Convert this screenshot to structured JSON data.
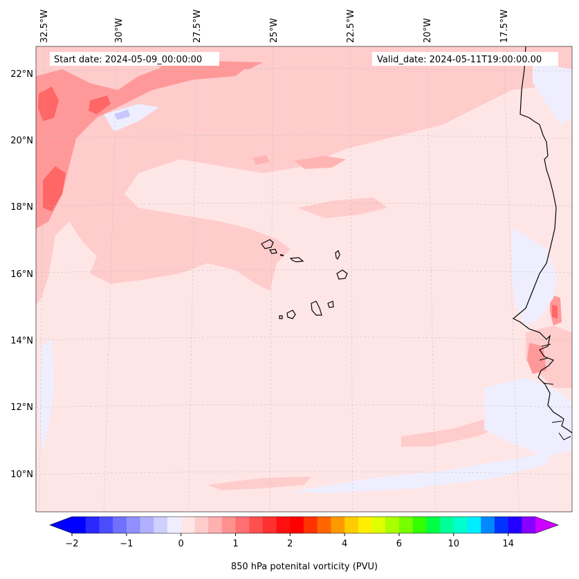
{
  "map": {
    "start_date": "Start date: 2024-05-09_00:00:00",
    "valid_date": "Valid_date: 2024-05-11T19:00:00.00",
    "lon_labels": [
      "32.5°W",
      "30°W",
      "27.5°W",
      "25°W",
      "22.5°W",
      "20°W",
      "17.5°W"
    ],
    "lat_labels": [
      "22°N",
      "20°N",
      "18°N",
      "16°N",
      "14°N",
      "12°N",
      "10°N"
    ],
    "colors": {
      "land_outline": "#000000",
      "ocean_base": "#ffe6e6",
      "light_pink": "#ffcccc",
      "medium_pink": "#ff9999",
      "strong_red": "#ff6666",
      "light_blue": "#eeeeff"
    }
  },
  "colorbar": {
    "label": "850 hPa potenital vorticity (PVU)",
    "ticks": [
      {
        "value": "−2",
        "level": -2
      },
      {
        "value": "−1",
        "level": -1
      },
      {
        "value": "0",
        "level": 0
      },
      {
        "value": "1",
        "level": 1
      },
      {
        "value": "2",
        "level": 2
      },
      {
        "value": "4",
        "level": 4
      },
      {
        "value": "6",
        "level": 6
      },
      {
        "value": "10",
        "level": 10
      },
      {
        "value": "14",
        "level": 14
      }
    ],
    "colors": [
      "#0000ff",
      "#2828ff",
      "#4c4cff",
      "#7070ff",
      "#9090ff",
      "#b0b0ff",
      "#d0d0ff",
      "#eeeeff",
      "#ffe6e6",
      "#ffcccc",
      "#ffb0b0",
      "#ff9090",
      "#ff7070",
      "#ff5050",
      "#ff3030",
      "#ff1010",
      "#ff0000",
      "#ff3300",
      "#ff6600",
      "#ff9900",
      "#ffcc00",
      "#ffee00",
      "#ddff00",
      "#aaff00",
      "#77ff00",
      "#33ff00",
      "#00ff44",
      "#00ff99",
      "#00ffcc",
      "#00eeff",
      "#0088ff",
      "#0033ff",
      "#2200ff",
      "#8800ff"
    ],
    "under_color": "#0000ff",
    "over_color": "#cc00ff"
  }
}
